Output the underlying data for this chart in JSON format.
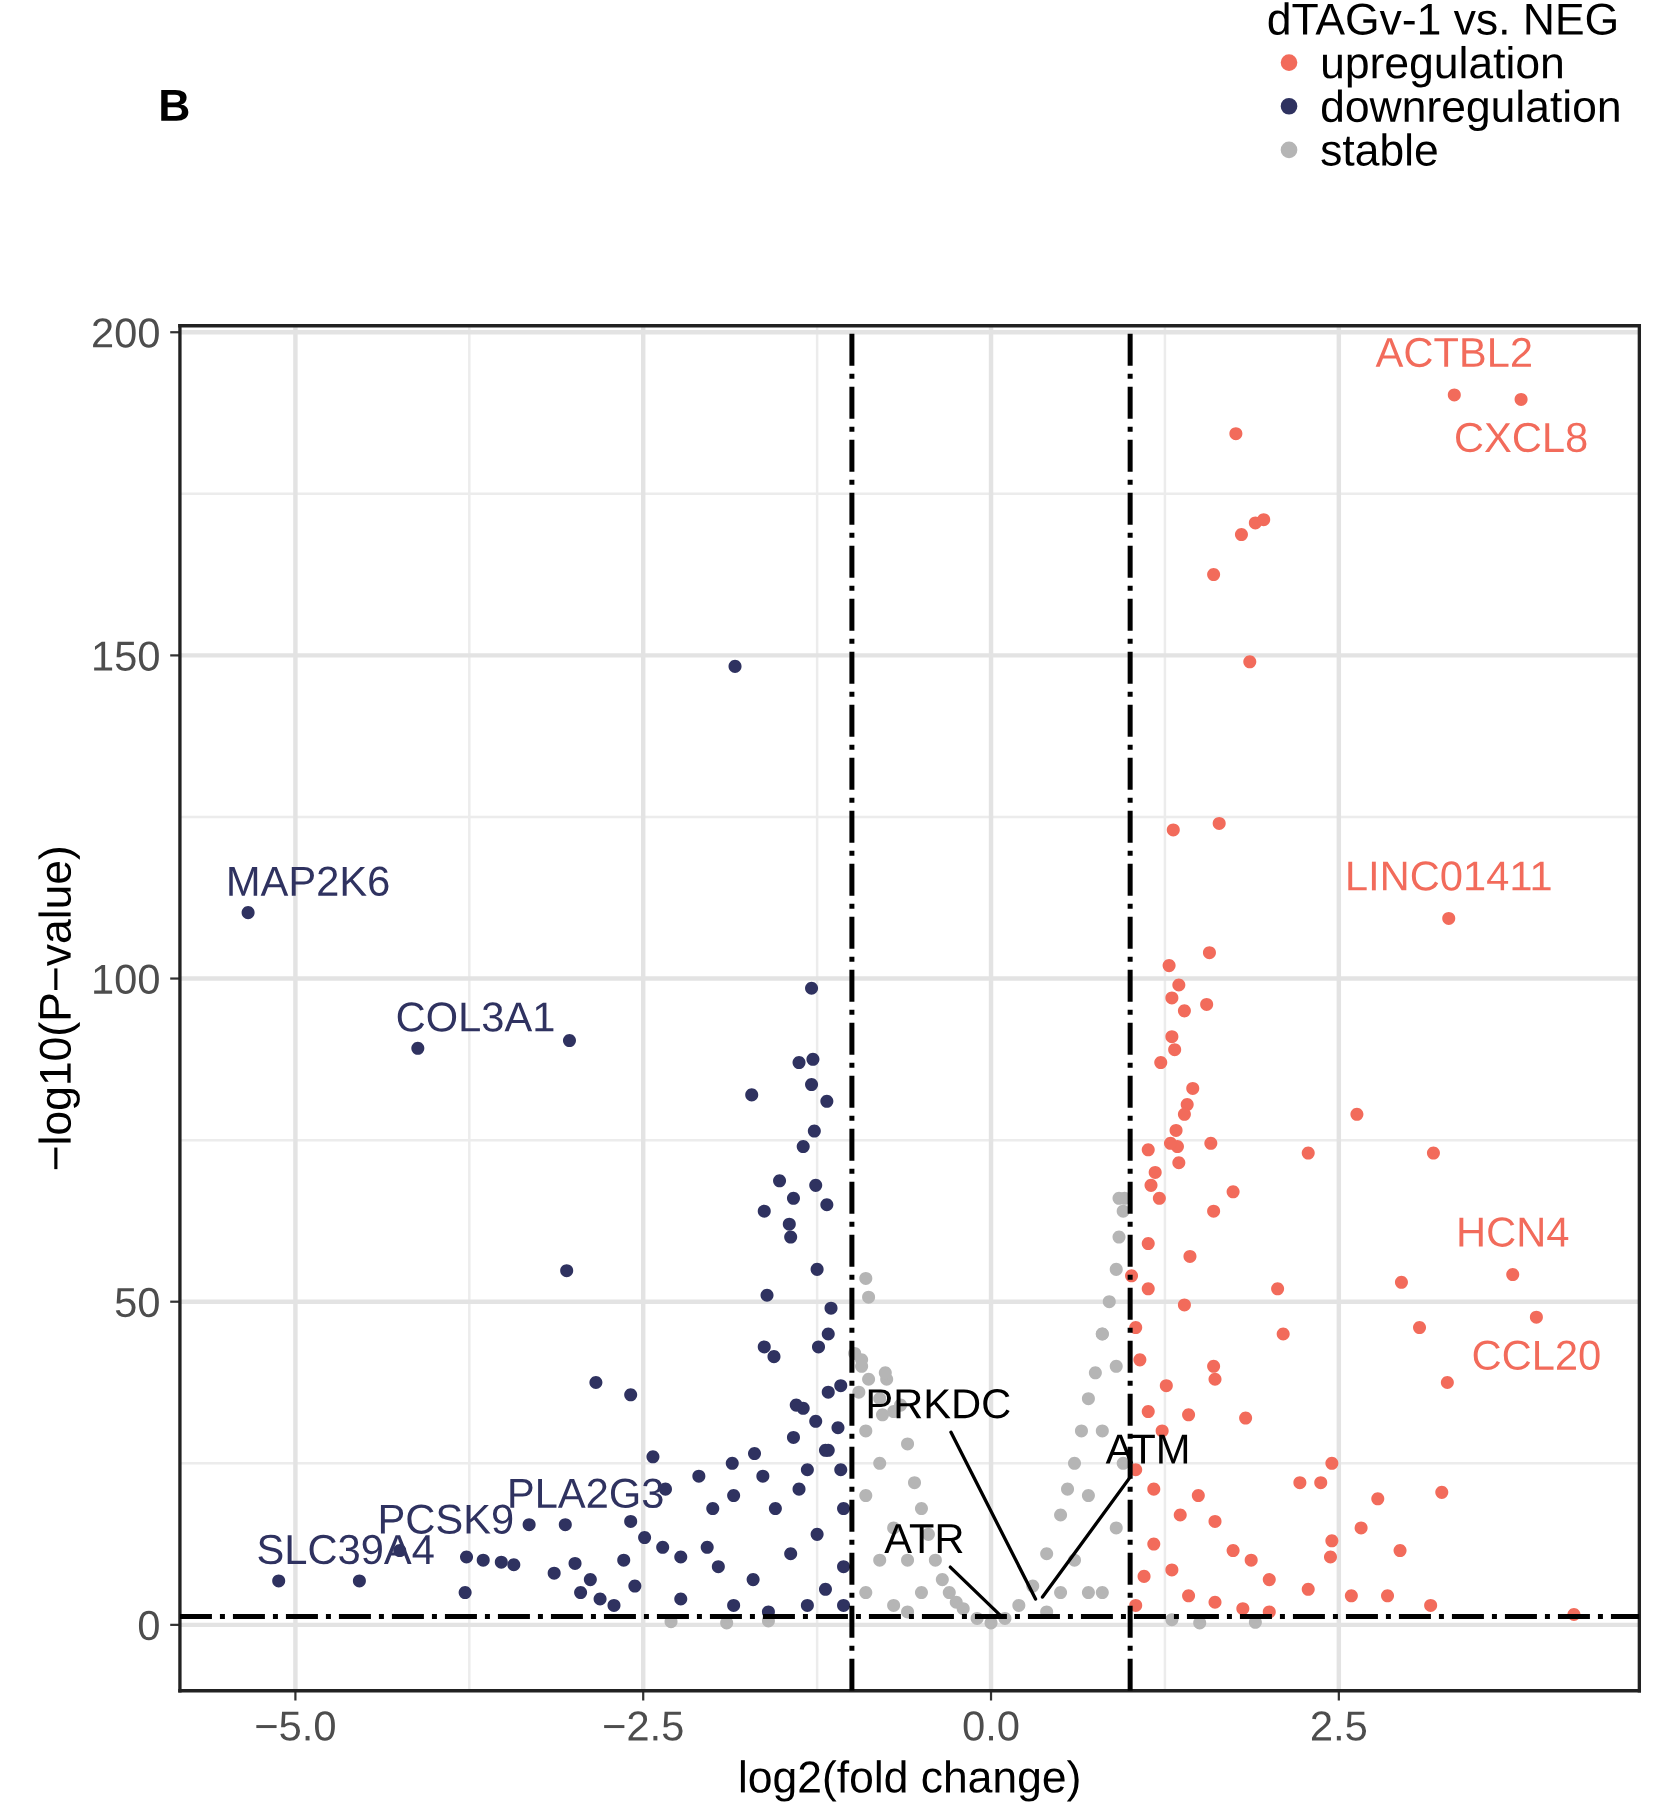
{
  "chart_data": {
    "type": "scatter",
    "title": "B",
    "xlabel": "log2(fold change)",
    "ylabel": "−log10(P−value)",
    "legend_title": "dTAGv-1 vs. NEG",
    "series": [
      {
        "name": "upregulation",
        "color": "#f26b5b",
        "x": [
          3.33,
          3.81,
          1.76,
          1.8,
          1.9,
          1.96,
          1.6,
          1.86,
          1.31,
          1.64,
          3.29,
          1.28,
          1.57,
          1.3,
          1.35,
          1.39,
          1.55,
          1.3,
          1.32,
          1.22,
          1.45,
          1.41,
          1.39,
          1.33,
          1.34,
          2.63,
          2.28,
          3.18,
          1.13,
          1.29,
          1.58,
          1.35,
          1.18,
          1.15,
          1.21,
          1.74,
          1.6,
          1.13,
          1.43,
          3.75,
          3.92,
          2.06,
          2.95,
          3.08,
          3.28,
          2.1,
          1.39,
          1.13,
          1.01,
          1.04,
          1.6,
          1.61,
          1.26,
          1.13,
          1.42,
          1.83,
          2.45,
          2.22,
          2.37,
          3.24,
          2.78,
          2.66,
          2.94,
          2.45,
          2.44,
          2.28,
          2.59,
          2.85,
          3.16,
          4.19,
          1.04,
          1.17,
          1.36,
          1.49,
          1.61,
          1.74,
          1.87,
          2.0,
          1.17,
          1.3,
          1.42,
          1.61,
          1.04,
          1.1,
          1.81,
          2.0,
          1.23,
          1.07
        ],
        "values": [
          190.3,
          189.6,
          184.3,
          168.7,
          170.5,
          171,
          162.5,
          149,
          123,
          124,
          109.3,
          102,
          104,
          97,
          99,
          95,
          96,
          91,
          89,
          87,
          83,
          80.5,
          79,
          76.5,
          74,
          79,
          73,
          73,
          73.5,
          74.5,
          74.5,
          71.5,
          70,
          68,
          66,
          67,
          64,
          59,
          57,
          54.2,
          47.6,
          52,
          53,
          46,
          37.5,
          45,
          49.5,
          52,
          54,
          46,
          40,
          38,
          37,
          33,
          32.5,
          32,
          25,
          22,
          22,
          20.5,
          19.5,
          15,
          11.5,
          13,
          10.5,
          5.5,
          4.5,
          4.5,
          3,
          1.6,
          24,
          21,
          17,
          20,
          16,
          11.5,
          10,
          7,
          12.5,
          8.5,
          4.5,
          3.5,
          3,
          7.5,
          2.5,
          2,
          30,
          41
        ]
      },
      {
        "name": "downregulation",
        "color": "#2f3260",
        "x": [
          -5.34,
          -4.12,
          -3.03,
          -1.84,
          -1.29,
          -3.05,
          -2.84,
          -2.59,
          -1.72,
          -1.38,
          -1.28,
          -1.29,
          -1.18,
          -1.27,
          -1.35,
          -1.52,
          -1.42,
          -1.26,
          -1.18,
          -1.63,
          -1.45,
          -1.44,
          -1.25,
          -1.61,
          -1.15,
          -1.63,
          -1.56,
          -1.24,
          -1.17,
          -1.35,
          -1.26,
          -1.17,
          -1.08,
          -1.17,
          -1.08,
          -3.32,
          -3.06,
          -4.25,
          -5.12,
          -4.54,
          -3.77,
          -3.65,
          -3.52,
          -3.43,
          -3.78,
          -3.14,
          -2.99,
          -2.43,
          -2.34,
          -2.1,
          -1.86,
          -1.7,
          -1.42,
          -1.4,
          -2.59,
          -2.49,
          -2.64,
          -2.88,
          -2.95,
          -2.81,
          -2.71,
          -2.56,
          -2.36,
          -2.23,
          -2.04,
          -2.0,
          -1.85,
          -1.64,
          -1.55,
          -1.38,
          -1.32,
          -1.19,
          -1.1,
          -1.96,
          -1.71,
          -1.44,
          -1.25,
          -1.19,
          -2.23,
          -1.85,
          -1.6,
          -1.32,
          -1.06,
          -1.06,
          -1.06
        ],
        "values": [
          110.2,
          89.2,
          90.4,
          148.3,
          98.5,
          54.8,
          37.5,
          35.6,
          82,
          87,
          87.5,
          83.6,
          81,
          76.4,
          74,
          68.7,
          66,
          68,
          65,
          64,
          62,
          60,
          55,
          51,
          49,
          43,
          41.5,
          43,
          45,
          33.5,
          31.5,
          36,
          37,
          27,
          24,
          15.5,
          15.5,
          11.5,
          6.8,
          6.8,
          10.5,
          10,
          9.7,
          9.3,
          5,
          8,
          9.5,
          26,
          21,
          23,
          25,
          26.5,
          29,
          34,
          16,
          13.5,
          10,
          7,
          5,
          4,
          3,
          6,
          12,
          10.5,
          12,
          18,
          20,
          23,
          18,
          21,
          24,
          27,
          30.5,
          9,
          7,
          11,
          14,
          5.5,
          4,
          3,
          2,
          3,
          9,
          3,
          18
        ]
      },
      {
        "name": "stable",
        "color": "#b5b5b5",
        "x": [
          -0.98,
          -0.93,
          -0.95,
          -0.88,
          -0.8,
          -0.75,
          -0.7,
          -0.65,
          -0.6,
          -0.55,
          -0.5,
          -0.45,
          -0.4,
          -0.35,
          -0.3,
          -0.25,
          -0.2,
          -0.1,
          0,
          0.1,
          0.2,
          0.3,
          0.4,
          0.5,
          0.55,
          0.6,
          0.65,
          0.7,
          0.75,
          0.8,
          0.85,
          0.9,
          0.92,
          0.96,
          0.95,
          0.92,
          0.8,
          -0.9,
          -0.88,
          -0.93,
          -0.76,
          -0.78,
          -0.9,
          -0.9,
          -0.8,
          -0.8,
          -0.7,
          -0.7,
          -0.6,
          -0.5,
          -0.9,
          -0.6,
          0.6,
          0.7,
          0.8,
          0.9,
          0.9,
          0.8,
          0.5,
          0.7,
          0.95,
          0.4,
          -2.3,
          -1.9,
          -1.6,
          1.5,
          1.9,
          1.3
        ],
        "values": [
          42,
          40,
          36,
          38,
          35,
          38,
          33,
          34,
          28,
          22,
          18,
          14,
          10,
          7,
          5,
          3.5,
          2.5,
          1,
          0.3,
          1,
          3,
          6,
          11,
          17,
          21,
          25,
          30,
          35,
          39,
          45,
          50,
          55,
          60,
          66,
          64,
          66,
          45,
          53.6,
          50.7,
          41,
          39,
          32.5,
          20,
          5,
          25,
          10,
          15,
          3,
          10,
          5,
          30,
          2,
          10,
          20,
          30,
          40,
          15,
          5,
          5,
          5,
          25,
          2,
          0.5,
          0.3,
          0.6,
          0.3,
          0.4,
          0.8
        ]
      }
    ],
    "annotations": [
      {
        "text": "MAP2K6",
        "x": -5.34,
        "y": 110.2
      },
      {
        "text": "COL3A1",
        "x": -4.12,
        "y": 89.2
      },
      {
        "text": "PLA2G3",
        "x": -3.32,
        "y": 15.5
      },
      {
        "text": "PCSK9",
        "x": -4.25,
        "y": 11.5
      },
      {
        "text": "SLC39A4",
        "x": -5.12,
        "y": 6.8
      },
      {
        "text": "ACTBL2",
        "x": 3.33,
        "y": 190.3
      },
      {
        "text": "CXCL8",
        "x": 3.81,
        "y": 189.6
      },
      {
        "text": "LINC01411",
        "x": 3.29,
        "y": 109.3
      },
      {
        "text": "HCN4",
        "x": 3.75,
        "y": 54.2
      },
      {
        "text": "CCL20",
        "x": 3.92,
        "y": 47.6
      },
      {
        "text": "PRKDC",
        "x": 0.32,
        "y": 4
      },
      {
        "text": "ATM",
        "x": 0.37,
        "y": 4.3
      },
      {
        "text": "ATR",
        "x": 0.08,
        "y": 1.2
      }
    ],
    "ref_lines": [
      {
        "axis": "x",
        "value": -1,
        "line_style": "dashdot",
        "color": "#000000"
      },
      {
        "axis": "x",
        "value": 1,
        "line_style": "dashdot",
        "color": "#000000"
      },
      {
        "axis": "y",
        "value": 1.3,
        "line_style": "dashdot",
        "color": "#000000"
      }
    ],
    "xlim": [
      -5.83,
      4.66
    ],
    "ylim": [
      -10.2,
      201
    ],
    "xticks": [
      {
        "value": -5,
        "label": "−5.0"
      },
      {
        "value": -2.5,
        "label": "−2.5"
      },
      {
        "value": 0,
        "label": "0.0"
      },
      {
        "value": 2.5,
        "label": "2.5"
      }
    ],
    "yticks": [
      0,
      50,
      100,
      150,
      200
    ],
    "grid": true,
    "legend": "top right",
    "marker": "circle"
  }
}
